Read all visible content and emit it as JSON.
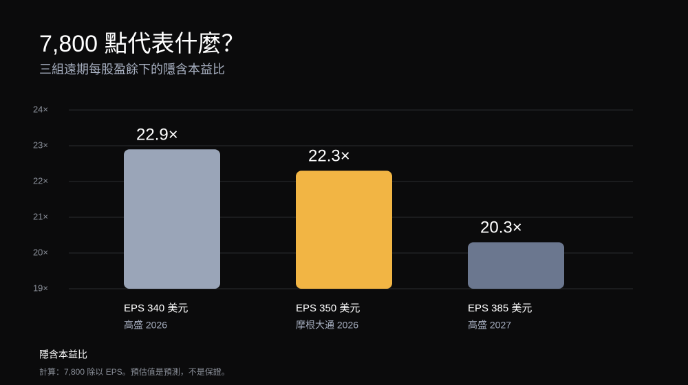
{
  "chart_data": {
    "type": "bar",
    "title": "7,800 點代表什麼？",
    "subtitle": "三組遠期每股盈餘下的隱含本益比",
    "categories": [
      "EPS 340 美元",
      "EPS 350 美元",
      "EPS 385 美元"
    ],
    "category_notes": [
      "高盛 2026",
      "摩根大通 2026",
      "高盛 2027"
    ],
    "values": [
      22.9,
      22.3,
      20.3
    ],
    "value_labels": [
      "22.9×",
      "22.3×",
      "20.3×"
    ],
    "colors": [
      "#9aa5b8",
      "#f2b544",
      "#6b778f"
    ],
    "ylim": [
      19,
      24
    ],
    "yticks": [
      {
        "value": 19,
        "label": "19×"
      },
      {
        "value": 20,
        "label": "20×"
      },
      {
        "value": 21,
        "label": "21×"
      },
      {
        "value": 22,
        "label": "22×"
      },
      {
        "value": 23,
        "label": "23×"
      },
      {
        "value": 24,
        "label": "24×"
      }
    ],
    "grid": true,
    "footer_title": "隱含本益比",
    "footer_note": "計算：7,800 除以 EPS。預估值是預測，不是保證。"
  }
}
